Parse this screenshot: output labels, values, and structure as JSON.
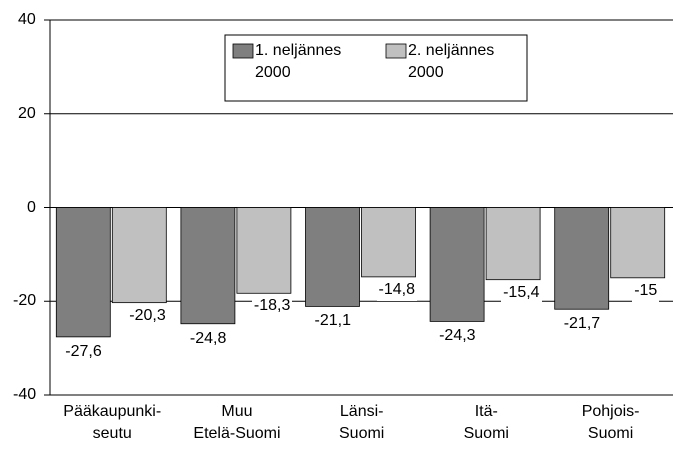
{
  "chart_data": {
    "type": "bar",
    "categories": [
      "Pääkaupunki-\nseutu",
      "Muu\nEtelä-Suomi",
      "Länsi-\nSuomi",
      "Itä-\nSuomi",
      "Pohjois-\nSuomi"
    ],
    "series": [
      {
        "name": "1. neljännes\n2000",
        "color": "#7f7f7f",
        "values": [
          -27.6,
          -24.8,
          -21.1,
          -24.3,
          -21.7
        ],
        "value_labels": [
          "-27,6",
          "-24,8",
          "-21,1",
          "-24,3",
          "-21,7"
        ]
      },
      {
        "name": "2. neljännes\n2000",
        "color": "#c0c0c0",
        "values": [
          -20.3,
          -18.3,
          -14.8,
          -15.4,
          -15
        ],
        "value_labels": [
          "-20,3",
          "-18,3",
          "-14,8",
          "-15,4",
          "-15"
        ]
      }
    ],
    "ylim": [
      -40,
      40
    ],
    "yticks": [
      -40,
      -20,
      0,
      20,
      40
    ],
    "grid": true
  }
}
